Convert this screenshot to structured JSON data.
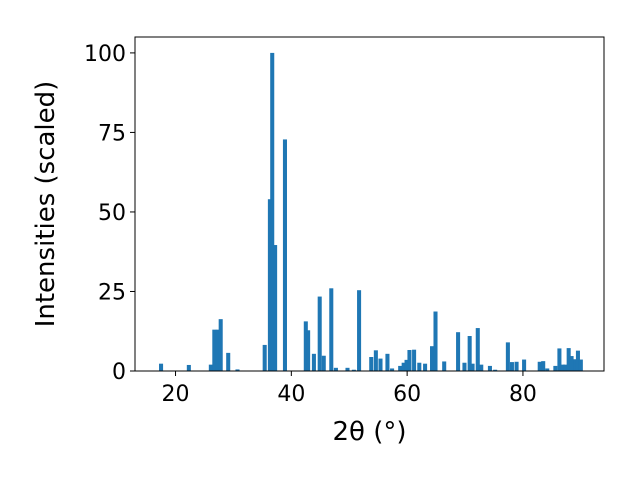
{
  "chart_data": {
    "type": "bar",
    "xlabel": "2θ (°)",
    "ylabel": "Intensities (scaled)",
    "xlim": [
      13,
      94
    ],
    "ylim": [
      0,
      105
    ],
    "x_ticks": [
      20,
      40,
      60,
      80
    ],
    "y_ticks": [
      0,
      25,
      50,
      75,
      100
    ],
    "bar_color": "#1f77b4",
    "bar_width": 0.7,
    "grid": false,
    "x": [
      17.5,
      22.3,
      26.1,
      26.7,
      27.3,
      27.8,
      29.1,
      30.7,
      35.4,
      36.3,
      36.7,
      37.2,
      38.9,
      42.5,
      42.9,
      43.9,
      44.9,
      45.6,
      46.9,
      47.7,
      49.7,
      50.8,
      51.7,
      53.8,
      54.6,
      55.4,
      56.6,
      57.4,
      58.8,
      59.4,
      59.9,
      60.4,
      61.2,
      62.1,
      63.1,
      64.3,
      64.9,
      66.4,
      68.8,
      69.9,
      70.8,
      71.3,
      72.2,
      72.8,
      74.3,
      75.2,
      77.4,
      78.1,
      78.9,
      80.2,
      82.9,
      83.5,
      84.2,
      85.6,
      86.3,
      86.9,
      87.3,
      87.9,
      88.4,
      89.0,
      89.5,
      90.0
    ],
    "values": [
      2.3,
      1.9,
      2.0,
      13.0,
      13.0,
      16.3,
      5.7,
      0.5,
      8.2,
      54.0,
      100.0,
      39.6,
      72.8,
      15.6,
      12.8,
      5.4,
      23.4,
      4.8,
      26.0,
      1.0,
      1.0,
      0.4,
      25.4,
      4.4,
      6.5,
      3.9,
      5.4,
      0.8,
      1.6,
      2.6,
      3.5,
      6.6,
      6.7,
      2.6,
      2.3,
      7.8,
      18.7,
      3.0,
      12.2,
      2.6,
      11.0,
      2.3,
      13.5,
      2.0,
      1.6,
      0.4,
      9.0,
      2.8,
      2.9,
      3.6,
      2.9,
      3.1,
      0.8,
      1.6,
      7.1,
      2.0,
      2.0,
      7.2,
      4.7,
      3.7,
      6.4,
      3.6
    ]
  }
}
